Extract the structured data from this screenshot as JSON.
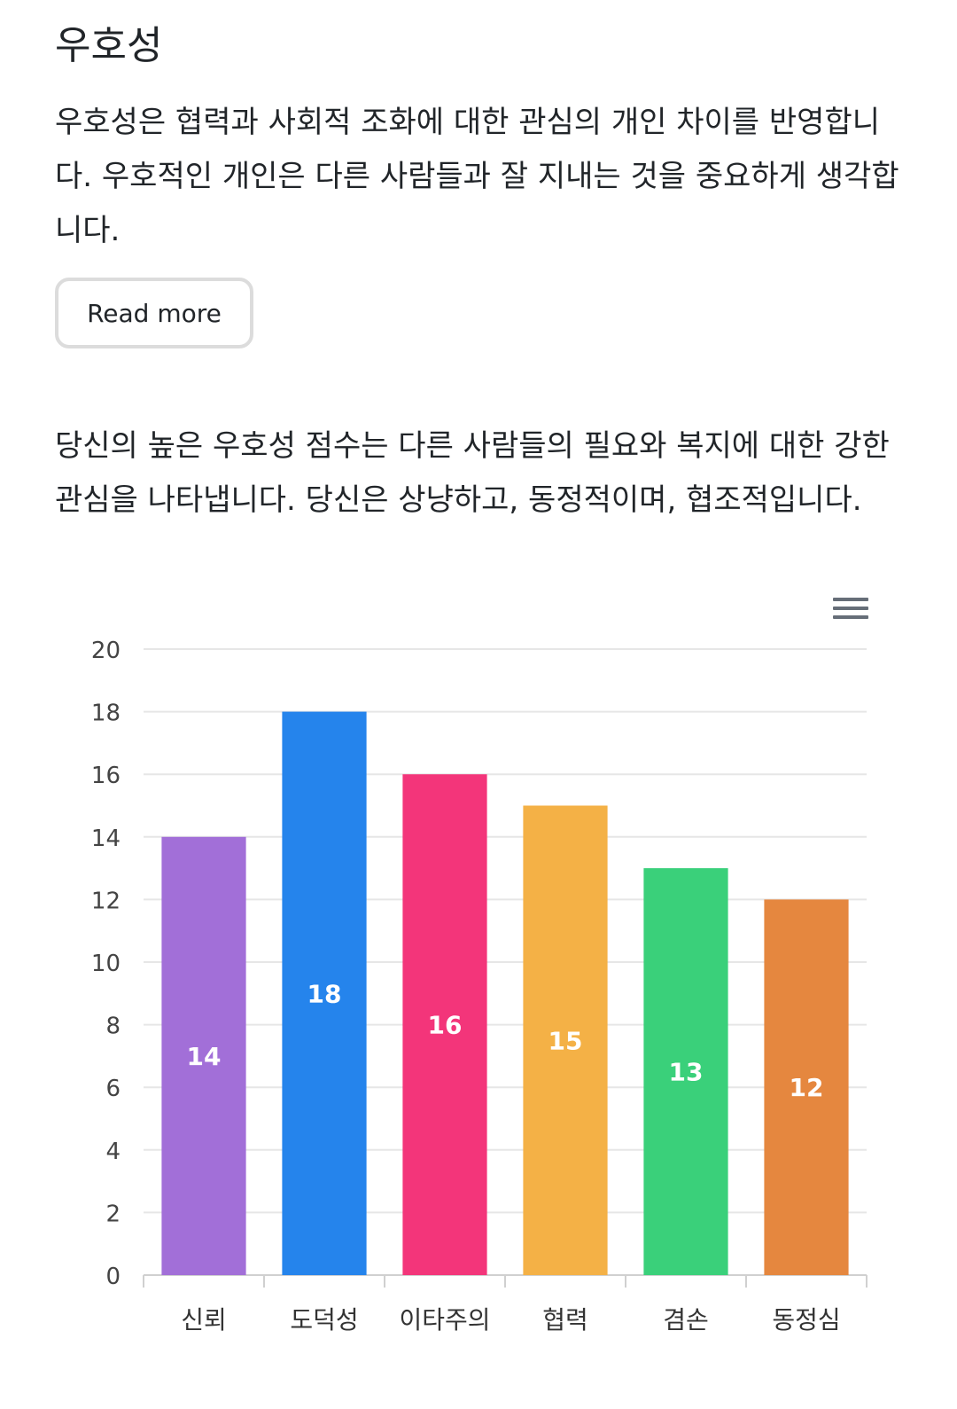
{
  "heading": "우호성",
  "description": "우호성은 협력과 사회적 조화에 대한 관심의 개인 차이를 반영합니다. 우호적인 개인은 다른 사람들과 잘 지내는 것을 중요하게 생각합니다.",
  "read_more_label": "Read more",
  "result_text": "당신의 높은 우호성 점수는 다른 사람들의 필요와 복지에 대한 강한 관심을 나타냅니다. 당신은 상냥하고, 동정적이며, 협조적입니다.",
  "menu_icon": "hamburger-menu-icon",
  "chart_data": {
    "type": "bar",
    "title": "",
    "xlabel": "",
    "ylabel": "",
    "categories": [
      "신뢰",
      "도덕성",
      "이타주의",
      "협력",
      "겸손",
      "동정심"
    ],
    "values": [
      14,
      18,
      16,
      15,
      13,
      12
    ],
    "colors": [
      "#a26fd8",
      "#2584ec",
      "#f3357a",
      "#f4b146",
      "#3ad07a",
      "#e5873f"
    ],
    "ylim": [
      0,
      20
    ],
    "yticks": [
      0,
      2,
      4,
      6,
      8,
      10,
      12,
      14,
      16,
      18,
      20
    ],
    "grid": true,
    "legend": "none",
    "data_labels": true
  }
}
